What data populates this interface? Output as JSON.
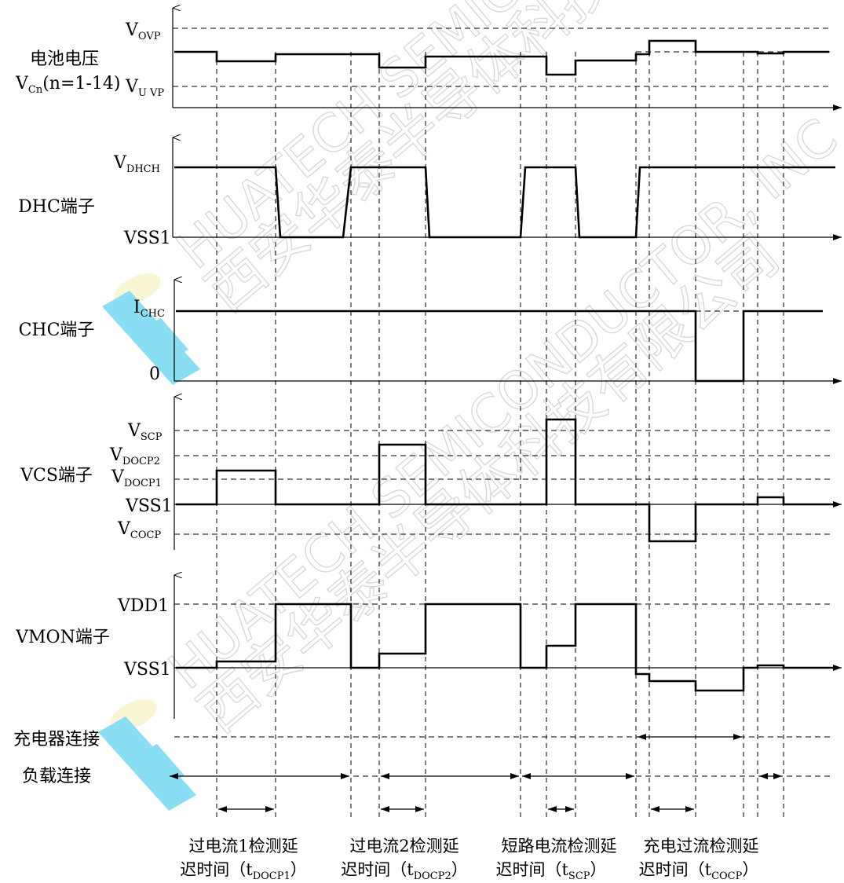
{
  "signals": {
    "battery": {
      "label1": "电池电压",
      "label2_main": "V",
      "label2_sub": "Cn",
      "label2_tail": "(n=1-14)"
    },
    "dhc": {
      "label": "DHC端子"
    },
    "chc": {
      "label": "CHC端子"
    },
    "vcs": {
      "label": "VCS端子"
    },
    "vmon": {
      "label": "VMON端子"
    },
    "charger": {
      "label": "充电器连接"
    },
    "load": {
      "label": "负载连接"
    }
  },
  "levels": {
    "vovp": {
      "main": "V",
      "sub": "OVP"
    },
    "vuvp": {
      "main": "V",
      "sub": "U VP"
    },
    "vdhch": {
      "main": "V",
      "sub": "DHCH"
    },
    "vss1_dhc": "VSS1",
    "ichc": {
      "main": "I",
      "sub": "CHC"
    },
    "zero": "0",
    "vscp": {
      "main": "V",
      "sub": "SCP"
    },
    "vdocp2": {
      "main": "V",
      "sub": "DOCP2"
    },
    "vdocp1": {
      "main": "V",
      "sub": "DOCP1"
    },
    "vss1_vcs": "VSS1",
    "vcocp": {
      "main": "V",
      "sub": "COCP"
    },
    "vdd1": "VDD1",
    "vss1_vmon": "VSS1"
  },
  "captions": [
    {
      "line1": "过电流1检测延",
      "line2_pre": "迟时间（t",
      "line2_sub": "DOCP1",
      "line2_post": "）"
    },
    {
      "line1": "过电流2检测延",
      "line2_pre": "迟时间（t",
      "line2_sub": "DOCP2",
      "line2_post": "）"
    },
    {
      "line1": "短路电流检测延",
      "line2_pre": "迟时间（t",
      "line2_sub": "SCP",
      "line2_post": "）"
    },
    {
      "line1": "充电过流检测延",
      "line2_pre": "迟时间（t",
      "line2_sub": "COCP",
      "line2_post": "）"
    }
  ],
  "watermark": {
    "en": "HUATECH SEMICONDUCTOR, INC",
    "cn": "西安华泰半导体科技有限公司",
    "logo_colors": {
      "primary": "#2bc4ea",
      "accent": "#f2eeb0"
    }
  }
}
